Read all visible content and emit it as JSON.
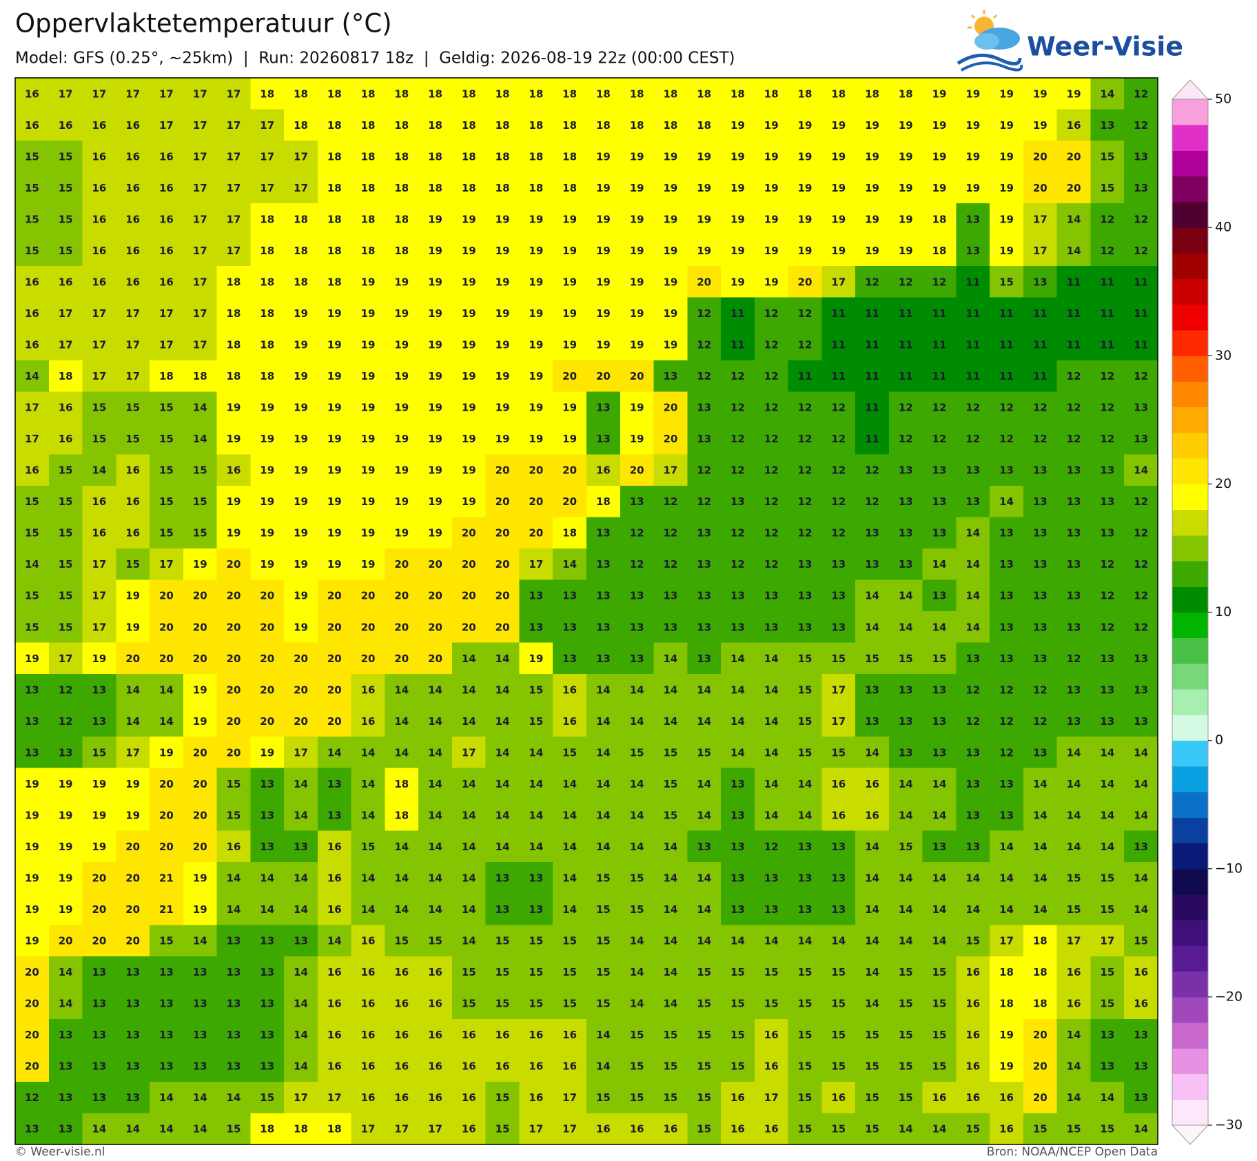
{
  "header": {
    "title": "Oppervlaktetemperatuur (°C)",
    "subtitle": "Model: GFS (0.25°, ~25km)  |  Run: 20260817 18z  |  Geldig: 2026-08-19 22z (00:00 CEST)"
  },
  "logo": "Weer-Visie",
  "grid": {
    "rows": [
      [
        16,
        17,
        17,
        17,
        17,
        17,
        17,
        18,
        18,
        18,
        18,
        18,
        18,
        18,
        18,
        18,
        18,
        18,
        18,
        18,
        18,
        18,
        18,
        18,
        18,
        18,
        18,
        19,
        19,
        19,
        19,
        19,
        14,
        12
      ],
      [
        16,
        16,
        16,
        16,
        17,
        17,
        17,
        17,
        18,
        18,
        18,
        18,
        18,
        18,
        18,
        18,
        18,
        18,
        18,
        18,
        18,
        19,
        19,
        19,
        19,
        19,
        19,
        19,
        19,
        19,
        19,
        16,
        13,
        12
      ],
      [
        15,
        15,
        16,
        16,
        16,
        17,
        17,
        17,
        17,
        18,
        18,
        18,
        18,
        18,
        18,
        18,
        18,
        19,
        19,
        19,
        19,
        19,
        19,
        19,
        19,
        19,
        19,
        19,
        19,
        19,
        20,
        20,
        15,
        13
      ],
      [
        15,
        15,
        16,
        16,
        16,
        17,
        17,
        17,
        17,
        18,
        18,
        18,
        18,
        18,
        18,
        18,
        18,
        19,
        19,
        19,
        19,
        19,
        19,
        19,
        19,
        19,
        19,
        19,
        19,
        19,
        20,
        20,
        15,
        13
      ],
      [
        15,
        15,
        16,
        16,
        16,
        17,
        17,
        18,
        18,
        18,
        18,
        18,
        19,
        19,
        19,
        19,
        19,
        19,
        19,
        19,
        19,
        19,
        19,
        19,
        19,
        19,
        19,
        18,
        13,
        19,
        17,
        14,
        12,
        12
      ],
      [
        15,
        15,
        16,
        16,
        16,
        17,
        17,
        18,
        18,
        18,
        18,
        18,
        19,
        19,
        19,
        19,
        19,
        19,
        19,
        19,
        19,
        19,
        19,
        19,
        19,
        19,
        19,
        18,
        13,
        19,
        17,
        14,
        12,
        12
      ],
      [
        16,
        16,
        16,
        16,
        16,
        17,
        18,
        18,
        18,
        18,
        19,
        19,
        19,
        19,
        19,
        19,
        19,
        19,
        19,
        19,
        20,
        19,
        19,
        20,
        17,
        12,
        12,
        12,
        11,
        15,
        13,
        11,
        11,
        11
      ],
      [
        16,
        17,
        17,
        17,
        17,
        17,
        18,
        18,
        19,
        19,
        19,
        19,
        19,
        19,
        19,
        19,
        19,
        19,
        19,
        19,
        12,
        11,
        12,
        12,
        11,
        11,
        11,
        11,
        11,
        11,
        11,
        11,
        11,
        11
      ],
      [
        16,
        17,
        17,
        17,
        17,
        17,
        18,
        18,
        19,
        19,
        19,
        19,
        19,
        19,
        19,
        19,
        19,
        19,
        19,
        19,
        12,
        11,
        12,
        12,
        11,
        11,
        11,
        11,
        11,
        11,
        11,
        11,
        11,
        11
      ],
      [
        14,
        18,
        17,
        17,
        18,
        18,
        18,
        18,
        19,
        19,
        19,
        19,
        19,
        19,
        19,
        19,
        20,
        20,
        20,
        13,
        12,
        12,
        12,
        11,
        11,
        11,
        11,
        11,
        11,
        11,
        11,
        12,
        12,
        12
      ],
      [
        17,
        16,
        15,
        15,
        15,
        14,
        19,
        19,
        19,
        19,
        19,
        19,
        19,
        19,
        19,
        19,
        19,
        13,
        19,
        20,
        13,
        12,
        12,
        12,
        12,
        11,
        12,
        12,
        12,
        12,
        12,
        12,
        12,
        13
      ],
      [
        17,
        16,
        15,
        15,
        15,
        14,
        19,
        19,
        19,
        19,
        19,
        19,
        19,
        19,
        19,
        19,
        19,
        13,
        19,
        20,
        13,
        12,
        12,
        12,
        12,
        11,
        12,
        12,
        12,
        12,
        12,
        12,
        12,
        13
      ],
      [
        16,
        15,
        14,
        16,
        15,
        15,
        16,
        19,
        19,
        19,
        19,
        19,
        19,
        19,
        20,
        20,
        20,
        16,
        20,
        17,
        12,
        12,
        12,
        12,
        12,
        12,
        13,
        13,
        13,
        13,
        13,
        13,
        13,
        14
      ],
      [
        15,
        15,
        16,
        16,
        15,
        15,
        19,
        19,
        19,
        19,
        19,
        19,
        19,
        19,
        20,
        20,
        20,
        18,
        13,
        12,
        12,
        13,
        12,
        12,
        12,
        12,
        13,
        13,
        13,
        14,
        13,
        13,
        13,
        12
      ],
      [
        15,
        15,
        16,
        16,
        15,
        15,
        19,
        19,
        19,
        19,
        19,
        19,
        19,
        20,
        20,
        20,
        18,
        13,
        12,
        12,
        13,
        12,
        12,
        12,
        12,
        13,
        13,
        13,
        14,
        13,
        13,
        13,
        13,
        12
      ],
      [
        14,
        15,
        17,
        15,
        17,
        19,
        20,
        19,
        19,
        19,
        19,
        20,
        20,
        20,
        20,
        17,
        14,
        13,
        12,
        12,
        13,
        12,
        12,
        13,
        13,
        13,
        13,
        14,
        14,
        13,
        13,
        13,
        12,
        12
      ],
      [
        15,
        15,
        17,
        19,
        20,
        20,
        20,
        20,
        19,
        20,
        20,
        20,
        20,
        20,
        20,
        13,
        13,
        13,
        13,
        13,
        13,
        13,
        13,
        13,
        13,
        14,
        14,
        13,
        14,
        13,
        13,
        13,
        12,
        12
      ],
      [
        15,
        15,
        17,
        19,
        20,
        20,
        20,
        20,
        19,
        20,
        20,
        20,
        20,
        20,
        20,
        13,
        13,
        13,
        13,
        13,
        13,
        13,
        13,
        13,
        13,
        14,
        14,
        14,
        14,
        13,
        13,
        13,
        12,
        12
      ],
      [
        19,
        17,
        19,
        20,
        20,
        20,
        20,
        20,
        20,
        20,
        20,
        20,
        20,
        14,
        14,
        19,
        13,
        13,
        13,
        14,
        13,
        14,
        14,
        15,
        15,
        15,
        15,
        15,
        13,
        13,
        13,
        12,
        13,
        13
      ],
      [
        13,
        12,
        13,
        14,
        14,
        19,
        20,
        20,
        20,
        20,
        16,
        14,
        14,
        14,
        14,
        15,
        16,
        14,
        14,
        14,
        14,
        14,
        14,
        15,
        17,
        13,
        13,
        13,
        12,
        12,
        12,
        13,
        13,
        13
      ],
      [
        13,
        12,
        13,
        14,
        14,
        19,
        20,
        20,
        20,
        20,
        16,
        14,
        14,
        14,
        14,
        15,
        16,
        14,
        14,
        14,
        14,
        14,
        14,
        15,
        17,
        13,
        13,
        13,
        12,
        12,
        12,
        13,
        13,
        13
      ],
      [
        13,
        13,
        15,
        17,
        19,
        20,
        20,
        19,
        17,
        14,
        14,
        14,
        14,
        17,
        14,
        14,
        15,
        14,
        15,
        15,
        15,
        14,
        14,
        15,
        15,
        14,
        13,
        13,
        13,
        12,
        13,
        14,
        14,
        14
      ],
      [
        19,
        19,
        19,
        19,
        20,
        20,
        15,
        13,
        14,
        13,
        14,
        18,
        14,
        14,
        14,
        14,
        14,
        14,
        14,
        15,
        14,
        13,
        14,
        14,
        16,
        16,
        14,
        14,
        13,
        13,
        14,
        14,
        14,
        14
      ],
      [
        19,
        19,
        19,
        19,
        20,
        20,
        15,
        13,
        14,
        13,
        14,
        18,
        14,
        14,
        14,
        14,
        14,
        14,
        14,
        15,
        14,
        13,
        14,
        14,
        16,
        16,
        14,
        14,
        13,
        13,
        14,
        14,
        14,
        14
      ],
      [
        19,
        19,
        19,
        20,
        20,
        20,
        16,
        13,
        13,
        16,
        15,
        14,
        14,
        14,
        14,
        14,
        14,
        14,
        14,
        14,
        13,
        13,
        12,
        13,
        13,
        14,
        15,
        13,
        13,
        14,
        14,
        14,
        14,
        13
      ],
      [
        19,
        19,
        20,
        20,
        21,
        19,
        14,
        14,
        14,
        16,
        14,
        14,
        14,
        14,
        13,
        13,
        14,
        15,
        15,
        14,
        14,
        13,
        13,
        13,
        13,
        14,
        14,
        14,
        14,
        14,
        14,
        15,
        15,
        14
      ],
      [
        19,
        19,
        20,
        20,
        21,
        19,
        14,
        14,
        14,
        16,
        14,
        14,
        14,
        14,
        13,
        13,
        14,
        15,
        15,
        14,
        14,
        13,
        13,
        13,
        13,
        14,
        14,
        14,
        14,
        14,
        14,
        15,
        15,
        14
      ],
      [
        19,
        20,
        20,
        20,
        15,
        14,
        13,
        13,
        13,
        14,
        16,
        15,
        15,
        14,
        15,
        15,
        15,
        15,
        14,
        14,
        14,
        14,
        14,
        14,
        14,
        14,
        14,
        14,
        15,
        17,
        18,
        17,
        17,
        15
      ],
      [
        20,
        14,
        13,
        13,
        13,
        13,
        13,
        13,
        14,
        16,
        16,
        16,
        16,
        15,
        15,
        15,
        15,
        15,
        14,
        14,
        15,
        15,
        15,
        15,
        15,
        14,
        15,
        15,
        16,
        18,
        18,
        16,
        15,
        16
      ],
      [
        20,
        14,
        13,
        13,
        13,
        13,
        13,
        13,
        14,
        16,
        16,
        16,
        16,
        15,
        15,
        15,
        15,
        15,
        14,
        14,
        15,
        15,
        15,
        15,
        15,
        14,
        15,
        15,
        16,
        18,
        18,
        16,
        15,
        16
      ],
      [
        20,
        13,
        13,
        13,
        13,
        13,
        13,
        13,
        14,
        16,
        16,
        16,
        16,
        16,
        16,
        16,
        16,
        14,
        15,
        15,
        15,
        15,
        16,
        15,
        15,
        15,
        15,
        15,
        16,
        19,
        20,
        14,
        13,
        13
      ],
      [
        20,
        13,
        13,
        13,
        13,
        13,
        13,
        13,
        14,
        16,
        16,
        16,
        16,
        16,
        16,
        16,
        16,
        14,
        15,
        15,
        15,
        15,
        16,
        15,
        15,
        15,
        15,
        15,
        16,
        19,
        20,
        14,
        13,
        13
      ],
      [
        12,
        13,
        13,
        13,
        14,
        14,
        14,
        15,
        17,
        17,
        16,
        16,
        16,
        16,
        15,
        16,
        17,
        15,
        15,
        15,
        15,
        16,
        17,
        15,
        16,
        15,
        15,
        16,
        16,
        16,
        20,
        14,
        14,
        13
      ],
      [
        13,
        13,
        14,
        14,
        14,
        14,
        15,
        18,
        18,
        18,
        17,
        17,
        17,
        16,
        15,
        17,
        17,
        16,
        16,
        16,
        15,
        16,
        16,
        15,
        15,
        15,
        14,
        14,
        15,
        16,
        15,
        15,
        15,
        14
      ]
    ]
  },
  "colorbar": {
    "lim": [
      -30,
      50
    ],
    "ticks": [
      50,
      40,
      30,
      20,
      10,
      0,
      {
        "value": -10,
        "label": "−10"
      },
      {
        "value": -20,
        "label": "−20"
      },
      {
        "value": -30,
        "label": "−30"
      }
    ],
    "colors": [
      "#fde8fb",
      "#f8c0f4",
      "#e890e2",
      "#c868cc",
      "#a048bc",
      "#7a30a8",
      "#5a1a94",
      "#40107a",
      "#280a60",
      "#100a50",
      "#0a1a78",
      "#0a40a0",
      "#0a70c8",
      "#08a0e0",
      "#38c8f8",
      "#d4fae4",
      "#a8eeb0",
      "#78d878",
      "#48c048",
      "#00b400",
      "#008c00",
      "#3ca800",
      "#84c400",
      "#c8dc00",
      "#ffff00",
      "#ffe600",
      "#ffcc00",
      "#ffaa00",
      "#ff8800",
      "#ff5f00",
      "#ff2a00",
      "#ee0000",
      "#c80000",
      "#a00000",
      "#780010",
      "#500030",
      "#800060",
      "#b0009a",
      "#e030c8",
      "#f8a0dc"
    ],
    "under": "#fdf4fc",
    "over": "#fde6f5"
  },
  "footer": {
    "left": "© Weer-visie.nl",
    "right": "Bron: NOAA/NCEP Open Data"
  }
}
